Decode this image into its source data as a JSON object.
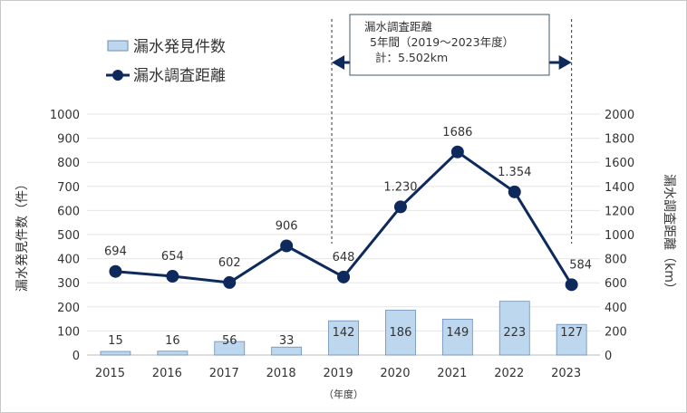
{
  "chart_data": {
    "type": "bar+line",
    "categories": [
      "2015",
      "2016",
      "2017",
      "2018",
      "2019",
      "2020",
      "2021",
      "2022",
      "2023"
    ],
    "series": [
      {
        "name": "漏水発見件数",
        "type": "bar",
        "axis": "left",
        "color": "#bdd7ee",
        "values": [
          15,
          16,
          56,
          33,
          142,
          186,
          149,
          223,
          127
        ],
        "labels": [
          "15",
          "16",
          "56",
          "33",
          "142",
          "186",
          "149",
          "223",
          "127"
        ]
      },
      {
        "name": "漏水調査距離",
        "type": "line",
        "axis": "right",
        "color": "#0e2a5c",
        "values": [
          694,
          654,
          602,
          906,
          648,
          1230,
          1686,
          1354,
          584
        ],
        "labels": [
          "694",
          "654",
          "602",
          "906",
          "648",
          "1.230",
          "1686",
          "1.354",
          "584"
        ]
      }
    ],
    "xlabel": "（年度）",
    "ylabel": "漏水発見件数（件）",
    "y2label": "漏水調査距離（km）",
    "ylim": [
      0,
      1000
    ],
    "yticks": [
      0,
      100,
      200,
      300,
      400,
      500,
      600,
      700,
      800,
      900,
      1000
    ],
    "y2lim": [
      0,
      2000
    ],
    "y2ticks": [
      0,
      200,
      400,
      600,
      800,
      1000,
      1200,
      1400,
      1600,
      1800,
      2000
    ],
    "grid": true,
    "legend": "top-left",
    "annotation": {
      "lines": [
        "漏水調査距離",
        "5年間（2019～2023年度）",
        "計：5.502km"
      ],
      "range": [
        "2019",
        "2023"
      ]
    }
  }
}
